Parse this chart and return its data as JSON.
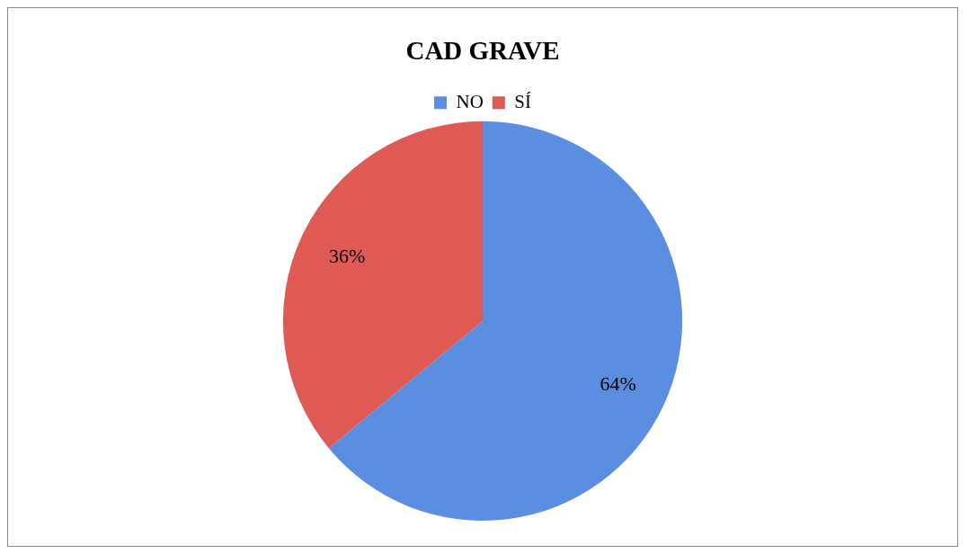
{
  "chart_data": {
    "type": "pie",
    "title": "CAD GRAVE",
    "categories": [
      "NO",
      "SÍ"
    ],
    "values": [
      64,
      36
    ],
    "colors": [
      "#5b8ee0",
      "#df5a55"
    ],
    "value_labels": [
      "64%",
      "36%"
    ],
    "legend": "top"
  }
}
